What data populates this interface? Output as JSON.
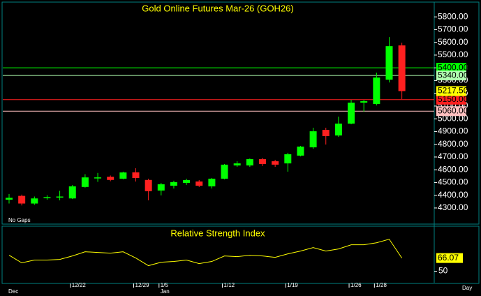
{
  "chart_data": [
    {
      "type": "candlestick",
      "title": "Gold Online Futures Mar-26 (GOH26)",
      "categories": [
        null,
        null,
        null,
        null,
        null,
        "12/22",
        null,
        null,
        null,
        null,
        "12/29",
        null,
        "1/5",
        null,
        null,
        null,
        null,
        "1/12",
        null,
        null,
        null,
        null,
        "1/19",
        null,
        null,
        null,
        null,
        "1/26",
        null,
        "1/28",
        null,
        null
      ],
      "months": [
        "Dec",
        null,
        null,
        null,
        null,
        null,
        null,
        null,
        null,
        null,
        null,
        null,
        "Jan",
        null,
        null,
        null,
        null,
        null,
        null,
        null,
        null,
        null,
        null,
        null,
        null,
        null,
        null,
        null,
        null,
        null,
        null,
        null
      ],
      "x_unit": "Day",
      "open": [
        4365,
        4395,
        4335,
        4380,
        4385,
        4375,
        4465,
        4535,
        4545,
        4530,
        4580,
        4520,
        4437,
        4475,
        4497,
        4508,
        4470,
        4530,
        4634,
        4634,
        4683,
        4667,
        4650,
        4711,
        4776,
        4913,
        4869,
        4962,
        5127,
        5116,
        5307,
        5576
      ],
      "high": [
        4410,
        4405,
        4390,
        4400,
        4435,
        4480,
        4565,
        4575,
        4555,
        4585,
        4612,
        4530,
        4497,
        4514,
        4530,
        4519,
        4535,
        4645,
        4667,
        4689,
        4694,
        4678,
        4733,
        4787,
        4930,
        4930,
        5017,
        5149,
        5149,
        5362,
        5641,
        5597
      ],
      "low": [
        4335,
        4320,
        4325,
        4365,
        4360,
        4370,
        4460,
        4505,
        4510,
        4525,
        4508,
        4360,
        4399,
        4453,
        4481,
        4464,
        4453,
        4525,
        4623,
        4623,
        4629,
        4623,
        4585,
        4705,
        4765,
        4798,
        4858,
        4957,
        5056,
        5105,
        5285,
        5154
      ],
      "close": [
        4380,
        4335,
        4375,
        4385,
        4390,
        4470,
        4540,
        4540,
        4520,
        4579,
        4535,
        4432,
        4486,
        4503,
        4519,
        4475,
        4530,
        4640,
        4650,
        4683,
        4645,
        4640,
        4722,
        4782,
        4902,
        4864,
        4962,
        5127,
        5138,
        5324,
        5570,
        5217.5
      ],
      "last_label": "5217.50",
      "up_color": "#00ff00",
      "down_color": "#ff2020",
      "ylim": [
        4190,
        5905
      ],
      "yticks": [
        {
          "value": 4300,
          "label": "4300.00"
        },
        {
          "value": 4400,
          "label": "4400.00"
        },
        {
          "value": 4500,
          "label": "4500.00"
        },
        {
          "value": 4600,
          "label": "4600.00"
        },
        {
          "value": 4700,
          "label": "4700.00"
        },
        {
          "value": 4800,
          "label": "4800.00"
        },
        {
          "value": 4900,
          "label": "4900.00"
        },
        {
          "value": 5000,
          "label": "5000.00"
        },
        {
          "value": 5100,
          "label": "5100.00"
        },
        {
          "value": 5200,
          "label": "5200.00"
        },
        {
          "value": 5300,
          "label": "5300.00"
        },
        {
          "value": 5400,
          "label": "5400.00"
        },
        {
          "value": 5500,
          "label": "5500.00"
        },
        {
          "value": 5600,
          "label": "5600.00"
        },
        {
          "value": 5700,
          "label": "5700.00"
        },
        {
          "value": 5800,
          "label": "5800.00"
        }
      ],
      "hlines": [
        {
          "value": 5400,
          "label": "5400.00",
          "color": "#00ff00"
        },
        {
          "value": 5340,
          "label": "5340.00",
          "color": "#b0ffb0"
        },
        {
          "value": 5150,
          "label": "5150.00",
          "color": "#ff2020"
        },
        {
          "value": 5060,
          "label": "5060.00",
          "color": "#ffc0c0"
        }
      ],
      "note": "No Gaps"
    },
    {
      "type": "line",
      "title": "Relative Strength Index",
      "color": "#ffff00",
      "values": [
        69.5,
        60.2,
        63.6,
        63.6,
        64.4,
        68.6,
        73.7,
        72.9,
        72.0,
        73.7,
        66.1,
        56.8,
        61.0,
        61.9,
        63.6,
        59.3,
        61.9,
        68.6,
        67.8,
        69.5,
        68.6,
        66.9,
        71.2,
        74.6,
        78.8,
        74.6,
        77.1,
        82.2,
        82.2,
        84.7,
        89.0,
        66.07
      ],
      "ylim": [
        36,
        104
      ],
      "yticks": [
        50
      ]
    }
  ]
}
